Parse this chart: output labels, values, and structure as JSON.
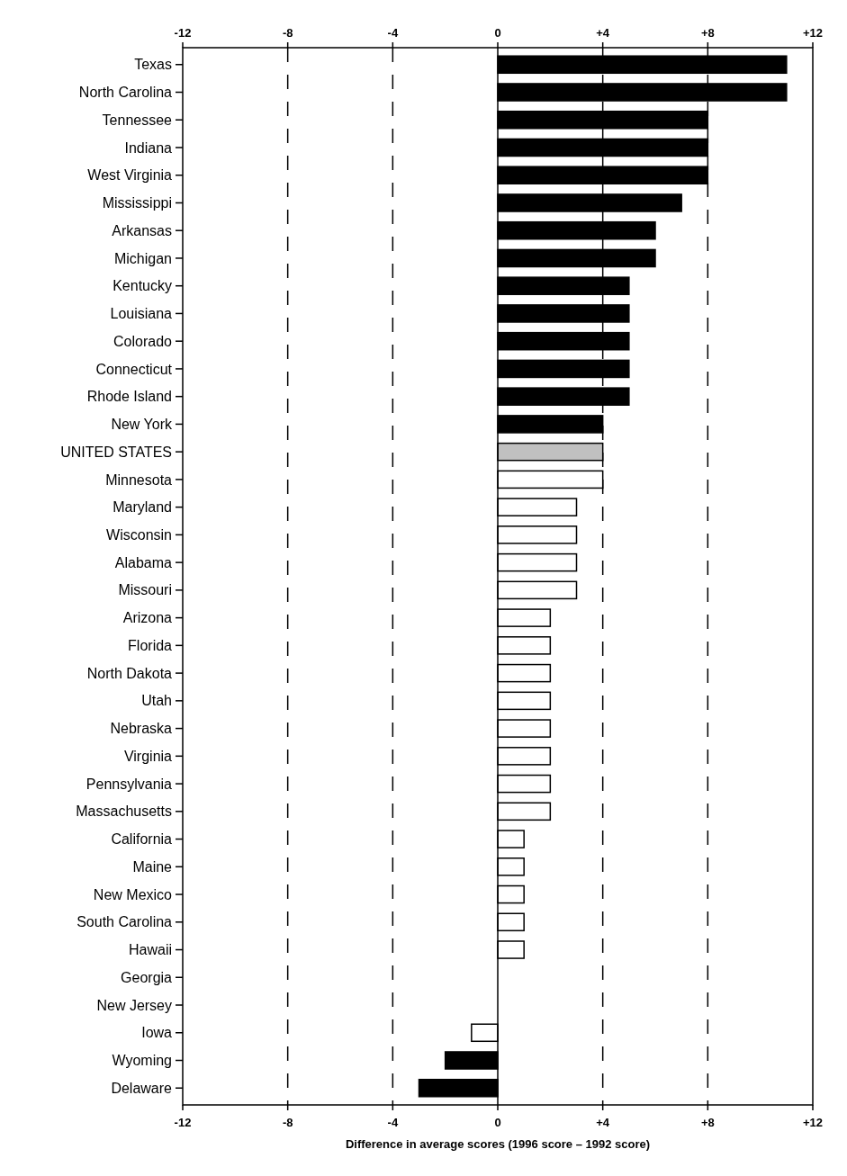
{
  "chart_data": {
    "type": "bar",
    "orientation": "horizontal",
    "xlabel": "Difference in average scores (1996 score – 1992 score)",
    "categories": [
      "Texas",
      "North Carolina",
      "Tennessee",
      "Indiana",
      "West Virginia",
      "Mississippi",
      "Arkansas",
      "Michigan",
      "Kentucky",
      "Louisiana",
      "Colorado",
      "Connecticut",
      "Rhode Island",
      "New York",
      "UNITED STATES",
      "Minnesota",
      "Maryland",
      "Wisconsin",
      "Alabama",
      "Missouri",
      "Arizona",
      "Florida",
      "North Dakota",
      "Utah",
      "Nebraska",
      "Virginia",
      "Pennsylvania",
      "Massachusetts",
      "California",
      "Maine",
      "New Mexico",
      "South Carolina",
      "Hawaii",
      "Georgia",
      "New Jersey",
      "Iowa",
      "Wyoming",
      "Delaware"
    ],
    "values": [
      11,
      11,
      8,
      8,
      8,
      7,
      6,
      6,
      5,
      5,
      5,
      5,
      5,
      4,
      4,
      4,
      3,
      3,
      3,
      3,
      2,
      2,
      2,
      2,
      2,
      2,
      2,
      2,
      1,
      1,
      1,
      1,
      1,
      0,
      0,
      -1,
      -2,
      -3
    ],
    "colors": [
      "#000000",
      "#000000",
      "#000000",
      "#000000",
      "#000000",
      "#000000",
      "#000000",
      "#000000",
      "#000000",
      "#000000",
      "#000000",
      "#000000",
      "#000000",
      "#000000",
      "#c0c0c0",
      "#ffffff",
      "#ffffff",
      "#ffffff",
      "#ffffff",
      "#ffffff",
      "#ffffff",
      "#ffffff",
      "#ffffff",
      "#ffffff",
      "#ffffff",
      "#ffffff",
      "#ffffff",
      "#ffffff",
      "#ffffff",
      "#ffffff",
      "#ffffff",
      "#ffffff",
      "#ffffff",
      "#ffffff",
      "#ffffff",
      "#ffffff",
      "#000000",
      "#000000"
    ],
    "xlim": [
      -12,
      12
    ],
    "xticks": [
      -12,
      -8,
      -4,
      0,
      {
        "value": 4,
        "label": "+4"
      },
      {
        "value": 8,
        "label": "+8"
      },
      {
        "value": 12,
        "label": "+12"
      }
    ],
    "x2lim": [
      -12,
      12
    ],
    "x2ticks": [
      -12,
      -8,
      -4,
      0,
      {
        "value": 4,
        "label": "+4"
      },
      {
        "value": 8,
        "label": "+8"
      },
      {
        "value": 12,
        "label": "+12"
      }
    ],
    "grid": "x"
  }
}
